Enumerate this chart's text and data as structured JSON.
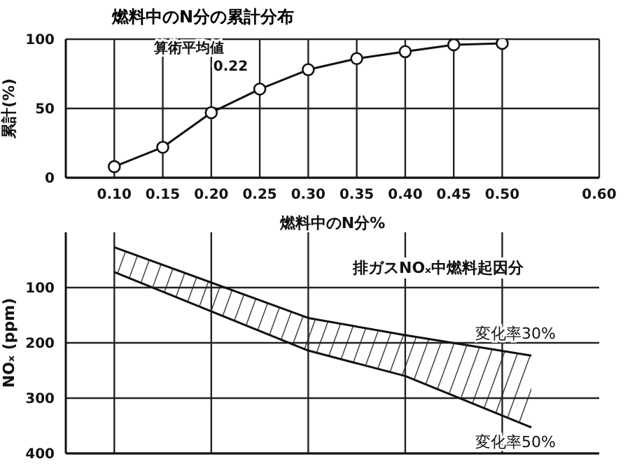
{
  "chart_data": [
    {
      "type": "line",
      "title": "燃料中のN分の累計分布",
      "xlabel": "燃料中のN分%",
      "ylabel": "累計(%)",
      "x": [
        0.1,
        0.15,
        0.2,
        0.25,
        0.3,
        0.35,
        0.4,
        0.45,
        0.5
      ],
      "series": [
        {
          "color": "#111111",
          "values": [
            8,
            22,
            47,
            64,
            78,
            86,
            91,
            96,
            97
          ]
        }
      ],
      "xlim": [
        0.05,
        0.6
      ],
      "xticks": [
        {
          "value": 0.1,
          "label": "0.10"
        },
        {
          "value": 0.15,
          "label": "0.15"
        },
        {
          "value": 0.2,
          "label": "0.20"
        },
        {
          "value": 0.25,
          "label": "0.25"
        },
        {
          "value": 0.3,
          "label": "0.30"
        },
        {
          "value": 0.35,
          "label": "0.35"
        },
        {
          "value": 0.4,
          "label": "0.40"
        },
        {
          "value": 0.45,
          "label": "0.45"
        },
        {
          "value": 0.5,
          "label": "0.50"
        },
        {
          "value": 0.6,
          "label": "0.60"
        }
      ],
      "ylim": [
        0,
        100
      ],
      "yticks": [
        0,
        50,
        100
      ],
      "grid": true,
      "marker": "circle",
      "line_style": "solid",
      "annotations": [
        {
          "text": "算術平均値\n0.22",
          "x": 0.22,
          "y": 50
        }
      ]
    },
    {
      "type": "line",
      "ylabel": "NOₓ (ppm)",
      "x": [
        0.1,
        0.3,
        0.4,
        0.53
      ],
      "series": [
        {
          "name": "変化率30%",
          "color": "#111111",
          "values": [
            27,
            155,
            186,
            223
          ],
          "lower": [
            27,
            155,
            186,
            223
          ],
          "upper": [
            72,
            214,
            260,
            353
          ]
        },
        {
          "name": "変化率50%",
          "color": "#111111",
          "values": [
            72,
            214,
            260,
            353
          ]
        }
      ],
      "xlim": [
        0.05,
        0.6
      ],
      "xticks": [
        0.1,
        0.2,
        0.3,
        0.4,
        0.5
      ],
      "tick_labels": "y",
      "ylim": [
        400,
        0
      ],
      "yticks": [
        100,
        200,
        300,
        400
      ],
      "grid": true,
      "marker": "none",
      "line_style": "solid",
      "annotations": [
        "排ガスNOₓ中燃料起因分"
      ]
    }
  ]
}
